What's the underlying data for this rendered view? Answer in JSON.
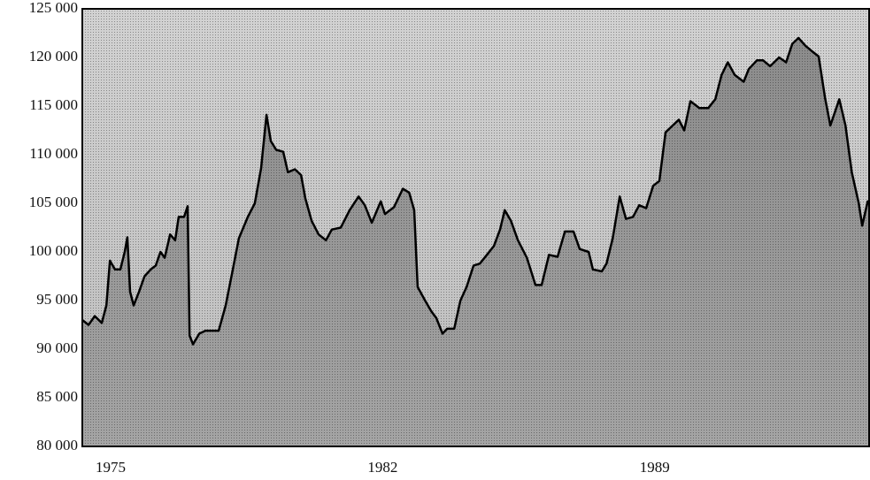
{
  "chart_data": {
    "type": "area",
    "x": [
      1974.27,
      1974.43,
      1974.59,
      1974.77,
      1974.89,
      1974.98,
      1975.11,
      1975.25,
      1975.36,
      1975.43,
      1975.5,
      1975.59,
      1975.73,
      1975.87,
      1976.03,
      1976.16,
      1976.28,
      1976.39,
      1976.53,
      1976.66,
      1976.75,
      1976.89,
      1976.98,
      1977.03,
      1977.12,
      1977.28,
      1977.44,
      1977.78,
      1977.96,
      1978.12,
      1978.3,
      1978.53,
      1978.71,
      1978.87,
      1979.01,
      1979.12,
      1979.26,
      1979.44,
      1979.56,
      1979.74,
      1979.9,
      1980.01,
      1980.17,
      1980.35,
      1980.54,
      1980.69,
      1980.92,
      1981.15,
      1981.38,
      1981.54,
      1981.72,
      1981.95,
      1982.06,
      1982.29,
      1982.52,
      1982.68,
      1982.81,
      1982.9,
      1983.09,
      1983.25,
      1983.38,
      1983.54,
      1983.66,
      1983.84,
      1984.0,
      1984.16,
      1984.34,
      1984.5,
      1984.68,
      1984.86,
      1985.02,
      1985.14,
      1985.3,
      1985.48,
      1985.71,
      1985.93,
      1986.09,
      1986.28,
      1986.5,
      1986.69,
      1986.91,
      1987.07,
      1987.3,
      1987.41,
      1987.64,
      1987.76,
      1987.92,
      1988.1,
      1988.26,
      1988.44,
      1988.6,
      1988.78,
      1988.96,
      1989.12,
      1989.28,
      1989.46,
      1989.62,
      1989.76,
      1989.92,
      1990.15,
      1990.38,
      1990.56,
      1990.72,
      1990.88,
      1991.06,
      1991.29,
      1991.42,
      1991.63,
      1991.79,
      1991.97,
      1992.2,
      1992.38,
      1992.54,
      1992.7,
      1992.88,
      1993.06,
      1993.22,
      1993.38,
      1993.52,
      1993.75,
      1993.91,
      1994.07,
      1994.25,
      1994.34,
      1994.48,
      1994.54
    ],
    "values": [
      93000,
      92500,
      93400,
      92700,
      94500,
      99100,
      98200,
      98200,
      100000,
      101500,
      95900,
      94500,
      95900,
      97500,
      98200,
      98600,
      100000,
      99400,
      101800,
      101200,
      103600,
      103600,
      104700,
      91400,
      90500,
      91600,
      91900,
      91900,
      94500,
      97700,
      101400,
      103600,
      105000,
      108600,
      114100,
      111400,
      110500,
      110300,
      108200,
      108500,
      107900,
      105500,
      103200,
      101800,
      101200,
      102300,
      102500,
      104300,
      105700,
      104800,
      103000,
      105200,
      103900,
      104600,
      106500,
      106100,
      104300,
      96400,
      95000,
      93900,
      93200,
      91600,
      92100,
      92100,
      95000,
      96400,
      98600,
      98800,
      99700,
      100600,
      102300,
      104300,
      103200,
      101200,
      99400,
      96600,
      96600,
      99700,
      99500,
      102100,
      102100,
      100300,
      100000,
      98200,
      98000,
      98800,
      101400,
      105700,
      103400,
      103600,
      104800,
      104500,
      106800,
      107300,
      112300,
      113000,
      113600,
      112500,
      115500,
      114800,
      114800,
      115700,
      118200,
      119500,
      118200,
      117500,
      118800,
      119700,
      119700,
      119100,
      120000,
      119500,
      121400,
      122000,
      121200,
      120600,
      120100,
      115900,
      113000,
      115700,
      113000,
      108200,
      105000,
      102700,
      105200,
      104800
    ],
    "color": "#000000",
    "xlim": [
      1974.27,
      1994.54
    ],
    "xticks": [
      1975,
      1982,
      1989
    ],
    "ylim": [
      80000,
      125000
    ],
    "yticks": [
      {
        "value": 80000,
        "label": "80 000"
      },
      {
        "value": 85000,
        "label": "85 000"
      },
      {
        "value": 90000,
        "label": "90 000"
      },
      {
        "value": 95000,
        "label": "95 000"
      },
      {
        "value": 100000,
        "label": "100 000"
      },
      {
        "value": 105000,
        "label": "105 000"
      },
      {
        "value": 110000,
        "label": "110 000"
      },
      {
        "value": 115000,
        "label": "115 000"
      },
      {
        "value": 120000,
        "label": "120 000"
      },
      {
        "value": 125000,
        "label": "125 000"
      }
    ],
    "grid": false
  }
}
